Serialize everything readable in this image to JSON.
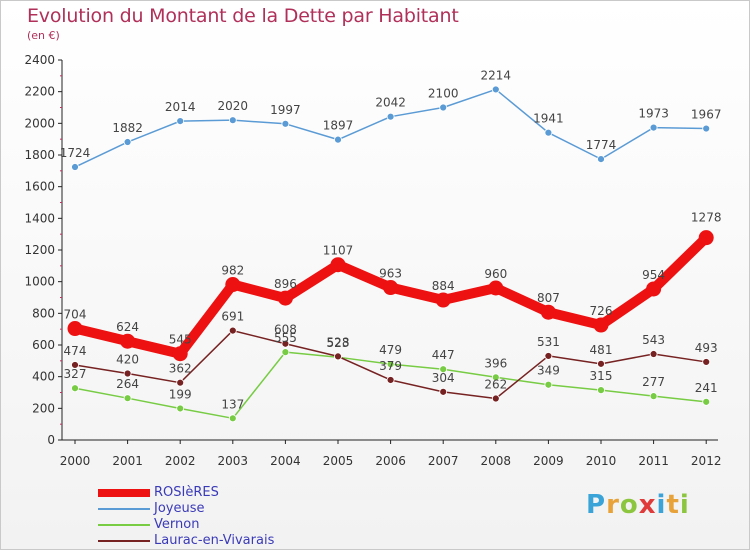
{
  "title": "Evolution du Montant de la Dette par Habitant",
  "subtitle": "(en €)",
  "logo": "Proxiti",
  "chart_data": {
    "type": "line",
    "categories": [
      "2000",
      "2001",
      "2002",
      "2003",
      "2004",
      "2005",
      "2006",
      "2007",
      "2008",
      "2009",
      "2010",
      "2011",
      "2012"
    ],
    "yticks": [
      "0",
      "200",
      "400",
      "600",
      "800",
      "1000",
      "1200",
      "1400",
      "1600",
      "1800",
      "2000",
      "2200",
      "2400"
    ],
    "ylim": [
      0,
      2400
    ],
    "grid": false,
    "legend_position": "bottom-left",
    "series": [
      {
        "name": "ROSIèRES",
        "color": "#ee1111",
        "values": [
          704,
          624,
          545,
          982,
          896,
          1107,
          963,
          884,
          960,
          807,
          726,
          954,
          1278
        ]
      },
      {
        "name": "Joyeuse",
        "color": "#5b9bd5",
        "values": [
          1724,
          1882,
          2014,
          2020,
          1997,
          1897,
          2042,
          2100,
          2214,
          1941,
          1774,
          1973,
          1967
        ]
      },
      {
        "name": "Vernon",
        "color": "#77cc44",
        "values": [
          327,
          264,
          199,
          137,
          555,
          523,
          479,
          447,
          396,
          349,
          315,
          277,
          241
        ]
      },
      {
        "name": "Laurac-en-Vivarais",
        "color": "#772222",
        "values": [
          474,
          420,
          362,
          691,
          608,
          528,
          379,
          304,
          262,
          531,
          481,
          543,
          493
        ]
      }
    ]
  }
}
